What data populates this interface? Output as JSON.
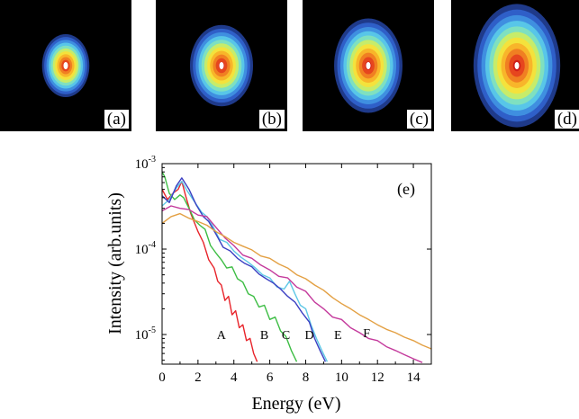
{
  "panels": [
    {
      "label": "(a)",
      "spot": {
        "rx_frac": 0.18,
        "ry_frac": 0.24
      }
    },
    {
      "label": "(b)",
      "spot": {
        "rx_frac": 0.24,
        "ry_frac": 0.31
      }
    },
    {
      "label": "(c)",
      "spot": {
        "rx_frac": 0.26,
        "ry_frac": 0.36
      }
    },
    {
      "label": "(d)",
      "spot": {
        "rx_frac": 0.33,
        "ry_frac": 0.47
      }
    }
  ],
  "colors": {
    "A": "#e8242b",
    "B": "#3dbd44",
    "C": "#5ec8e6",
    "D": "#3b3fc2",
    "E": "#c43a9c",
    "F": "#e3a043"
  },
  "chart_data": {
    "type": "line",
    "panel_label": "(e)",
    "xlabel": "Energy (eV)",
    "ylabel": "Intensity (arb.units)",
    "xlim": [
      0,
      15
    ],
    "ylim": [
      4.5e-06,
      0.001
    ],
    "yscale": "log",
    "xticks": [
      0,
      2,
      4,
      6,
      8,
      10,
      12,
      14
    ],
    "yticks": [
      {
        "value": 1e-05,
        "base": "10",
        "exp": "-5"
      },
      {
        "value": 0.0001,
        "base": "10",
        "exp": "-4"
      },
      {
        "value": 0.001,
        "base": "10",
        "exp": "-3"
      }
    ],
    "series": [
      {
        "name": "A",
        "label_pos": {
          "x": 3.3,
          "y": 1e-05
        },
        "x": [
          0,
          0.3,
          0.6,
          0.9,
          1.1,
          1.3,
          1.6,
          2.0,
          2.3,
          2.6,
          2.9,
          3.1,
          3.3,
          3.5,
          3.7,
          3.9,
          4.1,
          4.3,
          4.5,
          4.7,
          4.9,
          5.1,
          5.3
        ],
        "values": [
          0.0005,
          0.00038,
          0.00045,
          0.0005,
          0.00062,
          0.00043,
          0.00026,
          0.00016,
          0.00012,
          7.5e-05,
          6e-05,
          4.2e-05,
          3.8e-05,
          2.5e-05,
          2.8e-05,
          1.7e-05,
          1.9e-05,
          1.2e-05,
          1.3e-05,
          8.5e-06,
          9e-06,
          6e-06,
          4.8e-06
        ]
      },
      {
        "name": "B",
        "label_pos": {
          "x": 5.7,
          "y": 1e-05
        },
        "x": [
          0,
          0.15,
          0.4,
          0.7,
          1.0,
          1.2,
          1.5,
          1.8,
          2.1,
          2.4,
          2.7,
          3.0,
          3.3,
          3.6,
          3.9,
          4.2,
          4.5,
          4.8,
          5.1,
          5.4,
          5.7,
          6.0,
          6.3,
          6.6,
          6.9,
          7.2,
          7.5
        ],
        "values": [
          0.0008,
          0.0007,
          0.00045,
          0.00038,
          0.00043,
          0.0004,
          0.0003,
          0.00022,
          0.00019,
          0.00017,
          0.00011,
          9e-05,
          7.5e-05,
          6e-05,
          6.2e-05,
          4.5e-05,
          4.1e-05,
          3e-05,
          2.8e-05,
          2.1e-05,
          2.2e-05,
          1.5e-05,
          1.6e-05,
          1.1e-05,
          9.5e-06,
          6.5e-06,
          4.8e-06
        ]
      },
      {
        "name": "C",
        "label_pos": {
          "x": 6.9,
          "y": 1e-05
        },
        "x": [
          0,
          0.4,
          0.8,
          1.1,
          1.4,
          1.8,
          2.2,
          2.5,
          2.8,
          3.2,
          3.6,
          4.0,
          4.4,
          4.8,
          5.2,
          5.6,
          6.0,
          6.4,
          6.8,
          7.1,
          7.4,
          7.7,
          8.0,
          8.3,
          8.6,
          8.9,
          9.2
        ],
        "values": [
          0.00032,
          0.00038,
          0.00052,
          0.00062,
          0.00048,
          0.00036,
          0.00027,
          0.00024,
          0.00019,
          0.00013,
          0.00012,
          9.5e-05,
          8e-05,
          7e-05,
          6e-05,
          5e-05,
          4.6e-05,
          3.6e-05,
          3.4e-05,
          4.2e-05,
          3e-05,
          2.2e-05,
          2e-05,
          1.3e-05,
          9e-06,
          6.5e-06,
          4.8e-06
        ]
      },
      {
        "name": "D",
        "label_pos": {
          "x": 8.2,
          "y": 1e-05
        },
        "x": [
          0,
          0.4,
          0.8,
          1.1,
          1.5,
          1.9,
          2.3,
          2.6,
          3.0,
          3.4,
          3.8,
          4.2,
          4.6,
          5.0,
          5.4,
          5.8,
          6.2,
          6.6,
          7.0,
          7.4,
          7.8,
          8.2,
          8.5,
          8.8,
          9.1
        ],
        "values": [
          0.00042,
          0.00035,
          0.00055,
          0.00068,
          0.0005,
          0.00033,
          0.00024,
          0.00021,
          0.00015,
          0.000105,
          9.5e-05,
          7.8e-05,
          6.8e-05,
          6.2e-05,
          5.1e-05,
          4.5e-05,
          4e-05,
          3.4e-05,
          2.8e-05,
          2.4e-05,
          1.8e-05,
          1.4e-05,
          9e-06,
          6.5e-06,
          4.8e-06
        ]
      },
      {
        "name": "E",
        "label_pos": {
          "x": 9.8,
          "y": 1e-05
        },
        "x": [
          0,
          0.5,
          1.0,
          1.5,
          2.0,
          2.5,
          3.0,
          3.5,
          4.0,
          4.5,
          5.0,
          5.5,
          6.0,
          6.5,
          7.0,
          7.5,
          8.0,
          8.5,
          9.0,
          9.5,
          10.0,
          10.5,
          11.0,
          11.5,
          12.0,
          12.5,
          13.0,
          13.5,
          14.0,
          14.5
        ],
        "values": [
          0.00028,
          0.00032,
          0.0003,
          0.00029,
          0.00025,
          0.00024,
          0.00018,
          0.000135,
          0.00011,
          8.5e-05,
          7.8e-05,
          6.5e-05,
          5.7e-05,
          4.8e-05,
          4.6e-05,
          3.6e-05,
          3.2e-05,
          2.4e-05,
          2e-05,
          1.6e-05,
          1.5e-05,
          1.2e-05,
          1.05e-05,
          9e-06,
          8.5e-06,
          7.2e-06,
          6.5e-06,
          5.8e-06,
          5.2e-06,
          4.7e-06
        ]
      },
      {
        "name": "F",
        "label_pos": {
          "x": 11.4,
          "y": 1.05e-05
        },
        "x": [
          0,
          0.5,
          1.0,
          1.5,
          2.0,
          2.5,
          3.0,
          3.5,
          4.0,
          4.5,
          5.0,
          5.5,
          6.0,
          6.5,
          7.0,
          7.5,
          8.0,
          8.5,
          9.0,
          9.5,
          10.0,
          10.5,
          11.0,
          11.5,
          12.0,
          12.5,
          13.0,
          13.5,
          14.0,
          14.5,
          15.0
        ],
        "values": [
          0.0002,
          0.00024,
          0.00026,
          0.00023,
          0.00021,
          0.00019,
          0.00016,
          0.00014,
          0.00012,
          0.000108,
          9.8e-05,
          8.3e-05,
          7.8e-05,
          6.7e-05,
          6e-05,
          5e-05,
          4.5e-05,
          3.8e-05,
          3.3e-05,
          2.7e-05,
          2.3e-05,
          2e-05,
          1.7e-05,
          1.5e-05,
          1.3e-05,
          1.15e-05,
          1.05e-05,
          9.3e-06,
          8.5e-06,
          7.5e-06,
          6.8e-06
        ]
      }
    ]
  }
}
